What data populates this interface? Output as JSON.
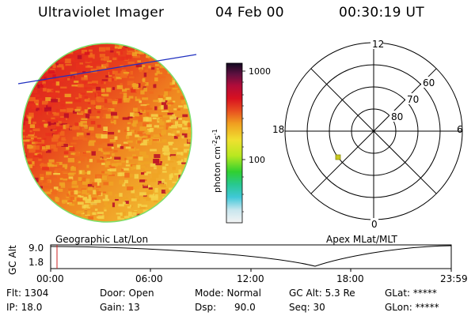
{
  "header": {
    "instrument": "Ultraviolet Imager",
    "date": "04 Feb 00",
    "time": "00:30:19 UT"
  },
  "colorbar": {
    "unit_label": "photon cm",
    "unit_exp1": "-2",
    "unit_s": "s",
    "unit_exp2": "-1",
    "tick_high": "1000",
    "tick_low": "100"
  },
  "polar": {
    "mlt_top": "12",
    "mlt_bottom": "0",
    "mlt_left": "18",
    "mlt_right": "6",
    "lat_60": "60",
    "lat_70": "70",
    "lat_80": "80"
  },
  "orbit": {
    "ylabel": "GC Alt",
    "ytick_high": "9.0",
    "ytick_low": "1.8",
    "left_label": "Geographic Lat/Lon",
    "right_label": "Apex MLat/MLT",
    "xticks": [
      "00:00",
      "06:00",
      "12:00",
      "18:00",
      "23:59"
    ]
  },
  "info": {
    "flt": "Flt: 1304",
    "ip": "IP: 18.0",
    "door": "Door: Open",
    "gain": "Gain: 13",
    "mode": "Mode: Normal",
    "dsp": "Dsp:",
    "dsp_val": "90.0",
    "gc_alt": "GC Alt: 5.3 Re",
    "seq": "Seq: 30",
    "glat": "GLat: *****",
    "glon": "GLon: *****"
  },
  "colors": {
    "disk_bright": "#e8102a",
    "disk_mid": "#f07a18",
    "disk_dim": "#f2dc3c",
    "limb": "#7ce06a",
    "terminator_line": "#2030c0",
    "time_marker": "#cc2020",
    "polar_point": "#c8c820"
  }
}
